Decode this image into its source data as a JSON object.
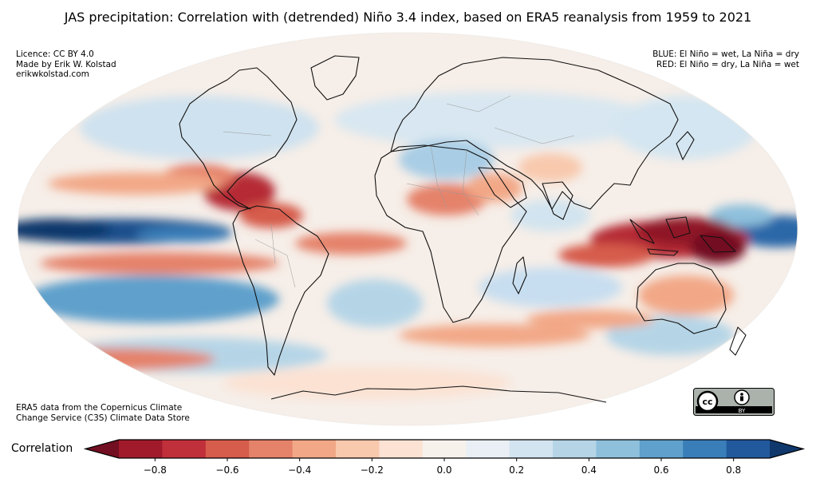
{
  "title": "JAS precipitation: Correlation with (detrended) Niño 3.4 index, based on ERA5 reanalysis from 1959 to 2021",
  "credits_top_left": [
    "Licence: CC BY 4.0",
    "Made by Erik W. Kolstad",
    "erikwkolstad.com"
  ],
  "legend_top_right": [
    "BLUE: El Niño = wet, La Niña = dry",
    "RED: El Niño = dry, La Niña = wet"
  ],
  "credits_bottom_left": [
    "ERA5 data from the Copernicus Climate",
    "Change Service (C3S) Climate Data Store"
  ],
  "license_badge": {
    "cc_text": "cc",
    "by_text": "BY"
  },
  "colorbar": {
    "label": "Correlation",
    "ticks": [
      "−0.8",
      "−0.6",
      "−0.4",
      "−0.2",
      "0.0",
      "0.2",
      "0.4",
      "0.6",
      "0.8"
    ],
    "tick_values": [
      -0.8,
      -0.6,
      -0.4,
      -0.2,
      0.0,
      0.2,
      0.4,
      0.6,
      0.8
    ],
    "range": [
      -0.9,
      0.9
    ],
    "colors": [
      "#730f22",
      "#a11a2c",
      "#c0303a",
      "#d65c4b",
      "#e5826a",
      "#f2a887",
      "#f8c9ad",
      "#fbe2d3",
      "#f7f1ec",
      "#e9eff4",
      "#d2e4ef",
      "#b5d5e7",
      "#8ec0dc",
      "#5fa0cc",
      "#3a7eb9",
      "#22599c",
      "#10386c"
    ]
  }
}
